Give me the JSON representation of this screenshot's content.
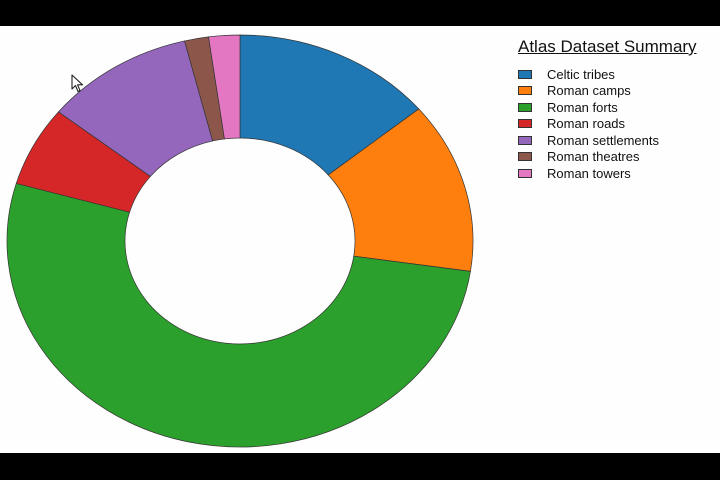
{
  "chart_data": {
    "type": "pie",
    "donut": true,
    "title": "Atlas Dataset Summary",
    "legend_placement": "top-right",
    "categories": [
      "Celtic tribes",
      "Roman camps",
      "Roman forts",
      "Roman roads",
      "Roman settlements",
      "Roman theatres",
      "Roman towers"
    ],
    "values": [
      14.2,
      13.7,
      53.2,
      6.4,
      10.6,
      1.7,
      2.2
    ],
    "colors": [
      "#1f77b4",
      "#ff7f0e",
      "#2ca02c",
      "#d62728",
      "#9467bd",
      "#8c564b",
      "#e377c2"
    ]
  }
}
